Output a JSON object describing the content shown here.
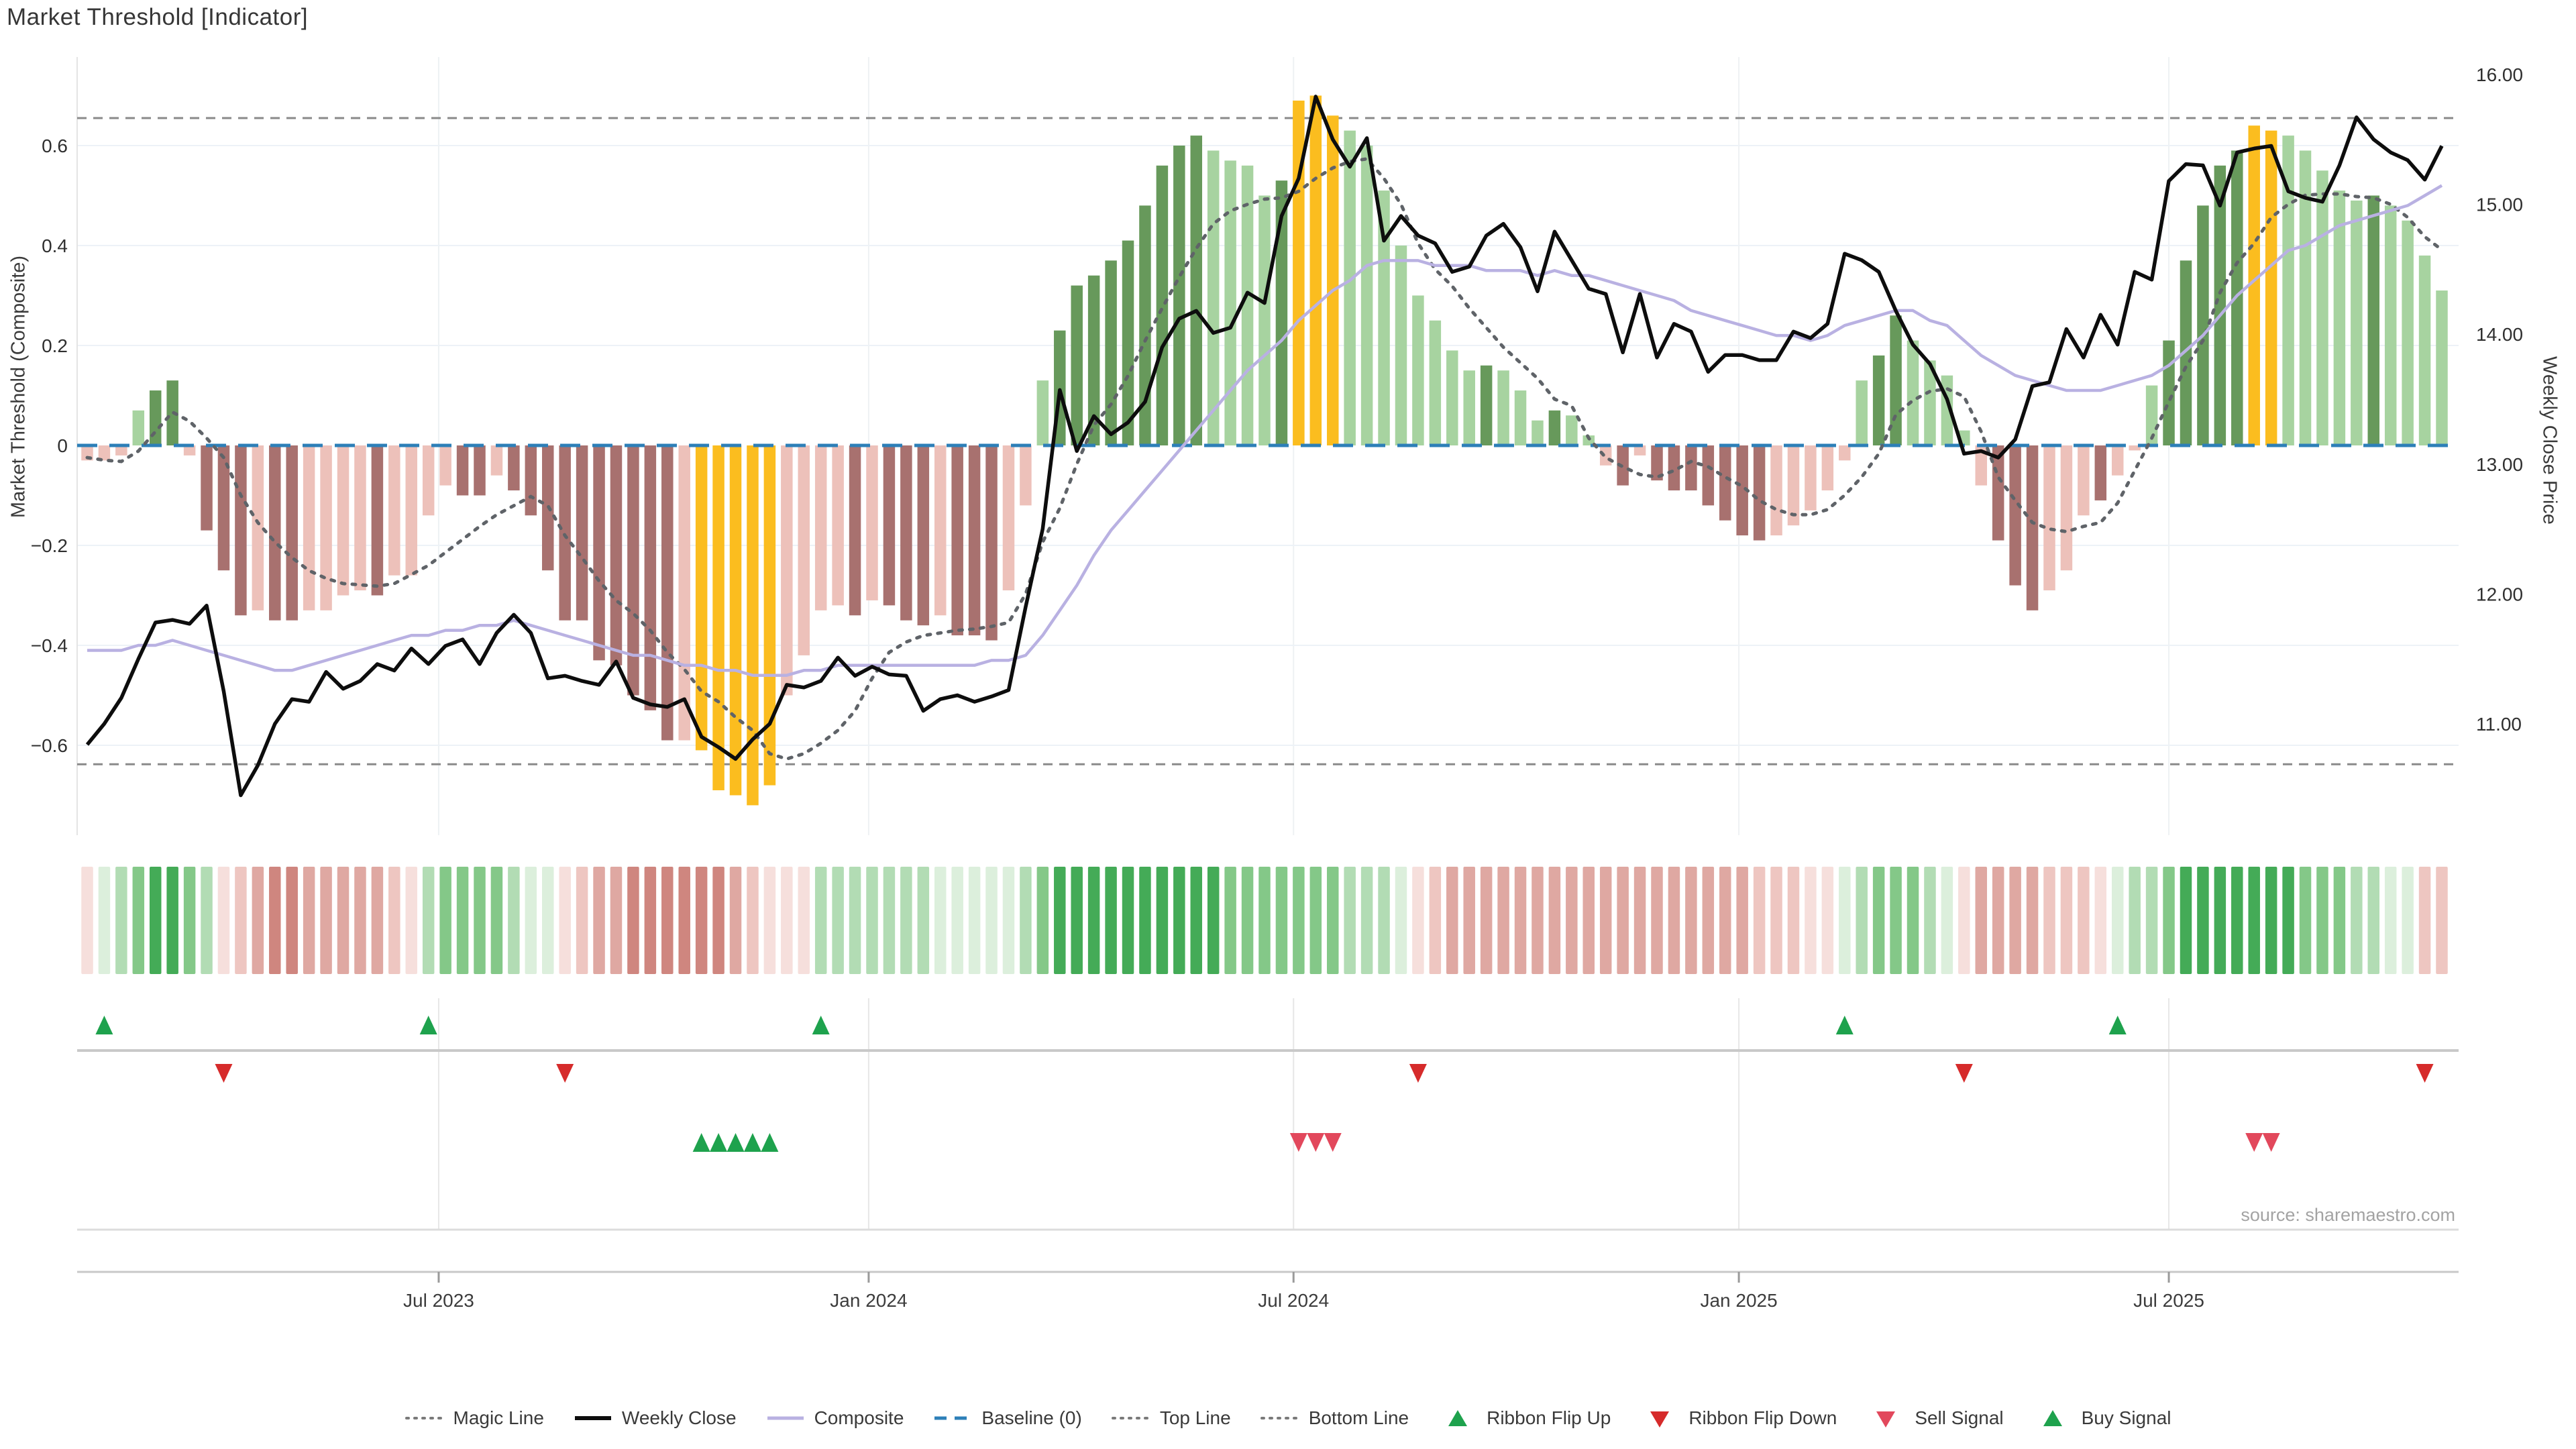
{
  "title": "Market Threshold [Indicator]",
  "source_note": "source: sharemaestro.com",
  "left_axis": {
    "label": "Market Threshold (Composite)",
    "ticks": [
      "0.6",
      "0.4",
      "0.2",
      "0",
      "−0.2",
      "−0.4",
      "−0.6"
    ],
    "tick_values": [
      0.6,
      0.4,
      0.2,
      0,
      -0.2,
      -0.4,
      -0.6
    ],
    "min": -0.78,
    "max": 0.78
  },
  "right_axis": {
    "label": "Weekly Close Price",
    "ticks": [
      "16.00",
      "15.00",
      "14.00",
      "13.00",
      "12.00",
      "11.00"
    ],
    "tick_values": [
      16,
      15,
      14,
      13,
      12,
      11
    ],
    "min": 10.14,
    "max": 16.13
  },
  "x_axis": {
    "ticks": [
      {
        "label": "Jul 2023",
        "week": 20.6
      },
      {
        "label": "Jan 2024",
        "week": 45.8
      },
      {
        "label": "Jul 2024",
        "week": 70.7
      },
      {
        "label": "Jan 2025",
        "week": 96.8
      },
      {
        "label": "Jul 2025",
        "week": 122.0
      }
    ]
  },
  "legend": {
    "items": [
      {
        "label": "Magic Line",
        "marker": "dotted-gray"
      },
      {
        "label": "Weekly Close",
        "marker": "solid-black"
      },
      {
        "label": "Composite",
        "marker": "solid-purple"
      },
      {
        "label": "Baseline (0)",
        "marker": "dashed-blue"
      },
      {
        "label": "Top Line",
        "marker": "dotted-gray"
      },
      {
        "label": "Bottom Line",
        "marker": "dotted-gray"
      },
      {
        "label": "Ribbon Flip Up",
        "marker": "triangle-up-green"
      },
      {
        "label": "Ribbon Flip Down",
        "marker": "triangle-down-red"
      },
      {
        "label": "Sell Signal",
        "marker": "triangle-down-crimson"
      },
      {
        "label": "Buy Signal",
        "marker": "triangle-up-green"
      }
    ]
  },
  "colors": {
    "bar_dark_green": "#67995b",
    "bar_light_green": "#a7d3a0",
    "bar_orange": "#fbbd1f",
    "bar_dark_red": "#a8716f",
    "bar_light_pink": "#edc1ba",
    "weekly_close": "#0d0d0d",
    "composite_line": "#b9b1e2",
    "magic_line": "#5f6368",
    "baseline": "#2d7fb8",
    "top_bottom_line": "#8a8a8a",
    "flip_up_green": "#1ea24d",
    "flip_down_red": "#d62b2b",
    "sell_crimson": "#e2485c",
    "buy_green": "#1ea24d",
    "ribbon_green": [
      "#dcefdc",
      "#b2dcb4",
      "#84c888",
      "#44ab57"
    ],
    "ribbon_red": [
      "#f6dfdc",
      "#eec6c1",
      "#dfa8a2",
      "#cf867f"
    ],
    "grid": "#edf2f7",
    "tick_text": "#2f2f2f"
  },
  "chart_data": {
    "type": "combo",
    "description": "Weekly market-threshold composite histogram with price overlay, trend ribbon and trade signals",
    "weeks": 139,
    "reference_lines": {
      "top_line": 0.655,
      "baseline": 0.0,
      "bottom_line": -0.638
    },
    "bars": {
      "name": "Market Threshold (Composite) histogram",
      "values": [
        -0.03,
        -0.03,
        -0.02,
        0.07,
        0.11,
        0.13,
        -0.02,
        -0.17,
        -0.25,
        -0.34,
        -0.33,
        -0.35,
        -0.35,
        -0.33,
        -0.33,
        -0.3,
        -0.29,
        -0.3,
        -0.26,
        -0.26,
        -0.14,
        -0.08,
        -0.1,
        -0.1,
        -0.06,
        -0.09,
        -0.14,
        -0.25,
        -0.35,
        -0.35,
        -0.43,
        -0.44,
        -0.5,
        -0.53,
        -0.59,
        -0.59,
        -0.61,
        -0.69,
        -0.7,
        -0.72,
        -0.68,
        -0.5,
        -0.42,
        -0.33,
        -0.32,
        -0.34,
        -0.31,
        -0.32,
        -0.35,
        -0.36,
        -0.34,
        -0.38,
        -0.38,
        -0.39,
        -0.29,
        -0.12,
        0.13,
        0.23,
        0.32,
        0.34,
        0.37,
        0.41,
        0.48,
        0.56,
        0.6,
        0.62,
        0.59,
        0.57,
        0.56,
        0.5,
        0.53,
        0.69,
        0.7,
        0.66,
        0.63,
        0.6,
        0.51,
        0.4,
        0.3,
        0.25,
        0.19,
        0.15,
        0.16,
        0.15,
        0.11,
        0.05,
        0.07,
        0.06,
        0.02,
        -0.04,
        -0.08,
        -0.02,
        -0.07,
        -0.09,
        -0.09,
        -0.12,
        -0.15,
        -0.18,
        -0.19,
        -0.18,
        -0.16,
        -0.13,
        -0.09,
        -0.03,
        0.13,
        0.18,
        0.26,
        0.21,
        0.17,
        0.14,
        0.03,
        -0.08,
        -0.19,
        -0.28,
        -0.33,
        -0.29,
        -0.25,
        -0.14,
        -0.11,
        -0.06,
        -0.01,
        0.12,
        0.21,
        0.37,
        0.48,
        0.56,
        0.59,
        0.64,
        0.63,
        0.62,
        0.59,
        0.55,
        0.51,
        0.49,
        0.5,
        0.48,
        0.45,
        0.38,
        0.31
      ],
      "color_codes": [
        "lp",
        "lp",
        "lp",
        "lg",
        "dg",
        "dg",
        "lp",
        "dr",
        "dr",
        "dr",
        "lp",
        "dr",
        "dr",
        "lp",
        "lp",
        "lp",
        "lp",
        "dr",
        "lp",
        "lp",
        "lp",
        "lp",
        "dr",
        "dr",
        "lp",
        "dr",
        "dr",
        "dr",
        "dr",
        "dr",
        "dr",
        "dr",
        "dr",
        "dr",
        "dr",
        "lp",
        "or",
        "or",
        "or",
        "or",
        "or",
        "lp",
        "lp",
        "lp",
        "lp",
        "dr",
        "lp",
        "dr",
        "dr",
        "dr",
        "lp",
        "dr",
        "dr",
        "dr",
        "lp",
        "lp",
        "lg",
        "dg",
        "dg",
        "dg",
        "dg",
        "dg",
        "dg",
        "dg",
        "dg",
        "dg",
        "lg",
        "lg",
        "lg",
        "lg",
        "dg",
        "or",
        "or",
        "or",
        "lg",
        "lg",
        "lg",
        "lg",
        "lg",
        "lg",
        "lg",
        "lg",
        "dg",
        "lg",
        "lg",
        "lg",
        "dg",
        "lg",
        "lg",
        "lp",
        "dr",
        "lp",
        "dr",
        "dr",
        "dr",
        "dr",
        "dr",
        "dr",
        "dr",
        "lp",
        "lp",
        "lp",
        "lp",
        "lp",
        "lg",
        "dg",
        "dg",
        "lg",
        "lg",
        "lg",
        "lg",
        "lp",
        "dr",
        "dr",
        "dr",
        "lp",
        "lp",
        "lp",
        "dr",
        "lp",
        "lp",
        "lg",
        "dg",
        "dg",
        "dg",
        "dg",
        "dg",
        "or",
        "or",
        "lg",
        "lg",
        "lg",
        "lg",
        "lg",
        "dg",
        "lg",
        "lg",
        "lg",
        "lg"
      ],
      "color_legend": {
        "dg": "dark green",
        "lg": "light green",
        "or": "orange extreme",
        "dr": "dark red",
        "lp": "light pink"
      }
    },
    "weekly_close": [
      10.84,
      11.0,
      11.2,
      11.5,
      11.78,
      11.8,
      11.77,
      11.91,
      11.25,
      10.45,
      10.68,
      11.0,
      11.19,
      11.17,
      11.4,
      11.27,
      11.33,
      11.46,
      11.41,
      11.58,
      11.46,
      11.6,
      11.65,
      11.46,
      11.7,
      11.84,
      11.7,
      11.35,
      11.37,
      11.33,
      11.3,
      11.48,
      11.2,
      11.15,
      11.13,
      11.19,
      10.9,
      10.82,
      10.73,
      10.88,
      11.0,
      11.3,
      11.28,
      11.33,
      11.51,
      11.37,
      11.44,
      11.38,
      11.37,
      11.1,
      11.19,
      11.22,
      11.17,
      11.21,
      11.26,
      11.9,
      12.5,
      13.57,
      13.1,
      13.37,
      13.23,
      13.32,
      13.48,
      13.9,
      14.12,
      14.18,
      14.01,
      14.05,
      14.32,
      14.24,
      14.91,
      15.2,
      15.83,
      15.5,
      15.29,
      15.51,
      14.72,
      14.91,
      14.76,
      14.7,
      14.48,
      14.52,
      14.76,
      14.85,
      14.67,
      14.33,
      14.79,
      14.57,
      14.35,
      14.31,
      13.86,
      14.31,
      13.82,
      14.08,
      14.02,
      13.71,
      13.84,
      13.84,
      13.8,
      13.8,
      14.02,
      13.97,
      14.08,
      14.62,
      14.57,
      14.48,
      14.18,
      13.92,
      13.77,
      13.5,
      13.08,
      13.1,
      13.05,
      13.19,
      13.6,
      13.63,
      14.04,
      13.82,
      14.15,
      13.92,
      14.48,
      14.42,
      15.18,
      15.31,
      15.3,
      14.99,
      15.4,
      15.43,
      15.45,
      15.1,
      15.05,
      15.02,
      15.3,
      15.67,
      15.5,
      15.4,
      15.34,
      15.19,
      15.45
    ],
    "magic_line": [
      13.05,
      13.03,
      13.02,
      13.1,
      13.25,
      13.4,
      13.33,
      13.2,
      13.05,
      12.76,
      12.55,
      12.4,
      12.28,
      12.18,
      12.12,
      12.08,
      12.07,
      12.06,
      12.08,
      12.15,
      12.22,
      12.32,
      12.42,
      12.52,
      12.61,
      12.68,
      12.75,
      12.68,
      12.45,
      12.28,
      12.1,
      11.95,
      11.85,
      11.72,
      11.55,
      11.42,
      11.25,
      11.17,
      11.05,
      10.95,
      10.77,
      10.73,
      10.77,
      10.85,
      10.95,
      11.1,
      11.35,
      11.55,
      11.63,
      11.68,
      11.7,
      11.72,
      11.73,
      11.75,
      11.78,
      12.0,
      12.4,
      12.66,
      13.0,
      13.3,
      13.46,
      13.68,
      13.95,
      14.2,
      14.44,
      14.66,
      14.85,
      14.95,
      15.0,
      15.04,
      15.05,
      15.1,
      15.2,
      15.28,
      15.33,
      15.35,
      15.2,
      15.0,
      14.7,
      14.5,
      14.37,
      14.2,
      14.05,
      13.9,
      13.78,
      13.66,
      13.5,
      13.45,
      13.2,
      13.05,
      12.98,
      12.92,
      12.9,
      12.95,
      13.02,
      12.98,
      12.9,
      12.83,
      12.72,
      12.65,
      12.61,
      12.61,
      12.65,
      12.76,
      12.9,
      13.08,
      13.38,
      13.49,
      13.56,
      13.58,
      13.52,
      13.25,
      12.9,
      12.72,
      12.55,
      12.5,
      12.48,
      12.52,
      12.55,
      12.7,
      12.95,
      13.2,
      13.48,
      13.75,
      13.95,
      14.32,
      14.55,
      14.7,
      14.9,
      15.0,
      15.07,
      15.08,
      15.08,
      15.06,
      15.05,
      15.0,
      14.9,
      14.75,
      14.65
    ],
    "composite_line": [
      -0.41,
      -0.41,
      -0.41,
      -0.4,
      -0.4,
      -0.39,
      -0.4,
      -0.41,
      -0.42,
      -0.43,
      -0.44,
      -0.45,
      -0.45,
      -0.44,
      -0.43,
      -0.42,
      -0.41,
      -0.4,
      -0.39,
      -0.38,
      -0.38,
      -0.37,
      -0.37,
      -0.36,
      -0.36,
      -0.35,
      -0.36,
      -0.37,
      -0.38,
      -0.39,
      -0.4,
      -0.41,
      -0.42,
      -0.42,
      -0.43,
      -0.44,
      -0.44,
      -0.45,
      -0.45,
      -0.46,
      -0.46,
      -0.46,
      -0.45,
      -0.45,
      -0.44,
      -0.44,
      -0.44,
      -0.44,
      -0.44,
      -0.44,
      -0.44,
      -0.44,
      -0.44,
      -0.43,
      -0.43,
      -0.42,
      -0.38,
      -0.33,
      -0.28,
      -0.22,
      -0.17,
      -0.13,
      -0.09,
      -0.05,
      -0.01,
      0.03,
      0.07,
      0.11,
      0.15,
      0.18,
      0.21,
      0.25,
      0.28,
      0.31,
      0.33,
      0.36,
      0.37,
      0.37,
      0.37,
      0.36,
      0.36,
      0.36,
      0.35,
      0.35,
      0.35,
      0.34,
      0.35,
      0.34,
      0.34,
      0.33,
      0.32,
      0.31,
      0.3,
      0.29,
      0.27,
      0.26,
      0.25,
      0.24,
      0.23,
      0.22,
      0.22,
      0.21,
      0.22,
      0.24,
      0.25,
      0.26,
      0.27,
      0.27,
      0.25,
      0.24,
      0.21,
      0.18,
      0.16,
      0.14,
      0.13,
      0.12,
      0.11,
      0.11,
      0.11,
      0.12,
      0.13,
      0.14,
      0.16,
      0.19,
      0.22,
      0.26,
      0.3,
      0.33,
      0.36,
      0.39,
      0.4,
      0.42,
      0.44,
      0.45,
      0.46,
      0.47,
      0.48,
      0.5,
      0.52
    ],
    "ribbon": [
      "r1",
      "g1",
      "g2",
      "g3",
      "g4",
      "g4",
      "g3",
      "g2",
      "r1",
      "r2",
      "r3",
      "r4",
      "r4",
      "r3",
      "r3",
      "r3",
      "r3",
      "r3",
      "r2",
      "r1",
      "g2",
      "g3",
      "g3",
      "g3",
      "g3",
      "g2",
      "g1",
      "g1",
      "r1",
      "r2",
      "r3",
      "r3",
      "r4",
      "r4",
      "r4",
      "r4",
      "r4",
      "r4",
      "r3",
      "r2",
      "r1",
      "r1",
      "r1",
      "g2",
      "g2",
      "g2",
      "g2",
      "g2",
      "g2",
      "g2",
      "g1",
      "g1",
      "g1",
      "g1",
      "g1",
      "g2",
      "g3",
      "g4",
      "g4",
      "g4",
      "g4",
      "g4",
      "g4",
      "g4",
      "g4",
      "g4",
      "g4",
      "g3",
      "g3",
      "g3",
      "g3",
      "g3",
      "g3",
      "g3",
      "g2",
      "g2",
      "g2",
      "g1",
      "r1",
      "r2",
      "r3",
      "r3",
      "r3",
      "r3",
      "r3",
      "r3",
      "r3",
      "r3",
      "r3",
      "r3",
      "r3",
      "r3",
      "r3",
      "r3",
      "r3",
      "r3",
      "r3",
      "r3",
      "r2",
      "r2",
      "r2",
      "r1",
      "r1",
      "g1",
      "g2",
      "g3",
      "g3",
      "g3",
      "g2",
      "g1",
      "r1",
      "r3",
      "r3",
      "r3",
      "r3",
      "r2",
      "r2",
      "r2",
      "r1",
      "g1",
      "g2",
      "g2",
      "g3",
      "g4",
      "g4",
      "g4",
      "g4",
      "g4",
      "g4",
      "g4",
      "g3",
      "g3",
      "g3",
      "g2",
      "g2",
      "g1",
      "g1",
      "r2",
      "r2"
    ],
    "signals": {
      "ribbon_flip_up_weeks": [
        1,
        20,
        43,
        103,
        119
      ],
      "ribbon_flip_down_weeks": [
        8,
        28,
        78,
        110,
        137
      ],
      "buy_signal_weeks": [
        36,
        37,
        38,
        39,
        40
      ],
      "sell_signal_weeks": [
        71,
        72,
        73,
        127,
        128
      ]
    }
  }
}
